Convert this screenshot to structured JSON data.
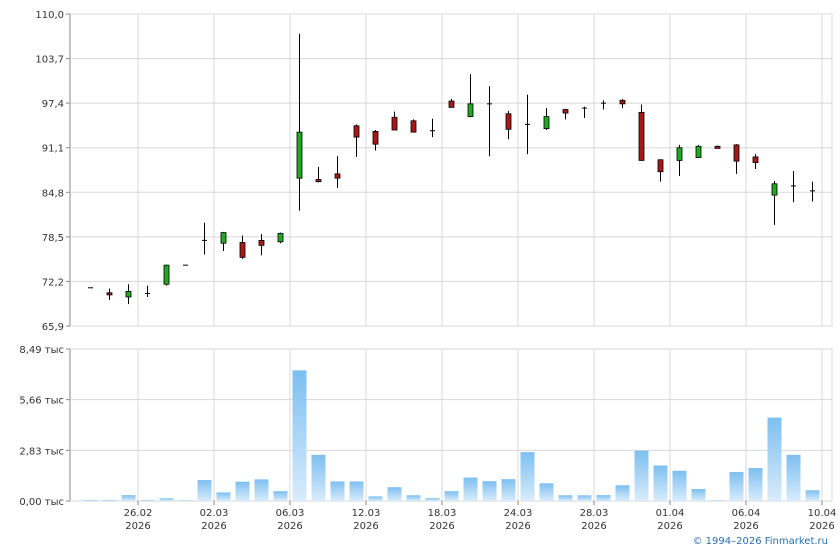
{
  "chart_data": [
    {
      "type": "candlestick",
      "ylim": [
        65.9,
        110.0
      ],
      "yticks": [
        "110,0",
        "103,7",
        "97,4",
        "91,1",
        "84,8",
        "78,5",
        "72,2",
        "65,9"
      ],
      "ytick_values": [
        110.0,
        103.7,
        97.4,
        91.1,
        84.8,
        78.5,
        72.2,
        65.9
      ],
      "grid": true,
      "up_color": "#22a822",
      "down_color": "#a81818",
      "candles": [
        {
          "o": 71.3,
          "h": 71.3,
          "l": 71.3,
          "c": 71.3
        },
        {
          "o": 70.6,
          "h": 71.2,
          "l": 69.6,
          "c": 70.3
        },
        {
          "o": 70.0,
          "h": 71.8,
          "l": 69.0,
          "c": 70.8
        },
        {
          "o": 70.5,
          "h": 71.6,
          "l": 70.0,
          "c": 70.5
        },
        {
          "o": 71.8,
          "h": 74.6,
          "l": 71.6,
          "c": 74.5
        },
        {
          "o": 74.5,
          "h": 74.5,
          "l": 74.5,
          "c": 74.5
        },
        {
          "o": 78.0,
          "h": 80.5,
          "l": 76.0,
          "c": 78.0
        },
        {
          "o": 77.6,
          "h": 79.2,
          "l": 76.5,
          "c": 79.1
        },
        {
          "o": 77.7,
          "h": 78.7,
          "l": 75.4,
          "c": 75.6
        },
        {
          "o": 78.0,
          "h": 78.9,
          "l": 75.9,
          "c": 77.3
        },
        {
          "o": 77.8,
          "h": 79.1,
          "l": 77.6,
          "c": 79.0
        },
        {
          "o": 86.8,
          "h": 107.2,
          "l": 82.2,
          "c": 93.3
        },
        {
          "o": 86.6,
          "h": 88.4,
          "l": 86.2,
          "c": 86.3
        },
        {
          "o": 87.4,
          "h": 89.9,
          "l": 85.4,
          "c": 86.8
        },
        {
          "o": 94.2,
          "h": 94.4,
          "l": 89.8,
          "c": 92.6
        },
        {
          "o": 93.4,
          "h": 93.6,
          "l": 90.7,
          "c": 91.6
        },
        {
          "o": 95.4,
          "h": 96.2,
          "l": 93.6,
          "c": 93.6
        },
        {
          "o": 94.9,
          "h": 95.1,
          "l": 93.3,
          "c": 93.3
        },
        {
          "o": 93.5,
          "h": 95.2,
          "l": 92.6,
          "c": 93.5
        },
        {
          "o": 97.7,
          "h": 98.0,
          "l": 97.0,
          "c": 96.8
        },
        {
          "o": 95.5,
          "h": 101.5,
          "l": 95.4,
          "c": 97.3
        },
        {
          "o": 97.3,
          "h": 99.8,
          "l": 89.9,
          "c": 97.3
        },
        {
          "o": 95.9,
          "h": 96.3,
          "l": 92.3,
          "c": 93.7
        },
        {
          "o": 94.4,
          "h": 98.6,
          "l": 90.2,
          "c": 94.4
        },
        {
          "o": 93.8,
          "h": 96.7,
          "l": 93.6,
          "c": 95.5
        },
        {
          "o": 96.5,
          "h": 96.6,
          "l": 95.1,
          "c": 96.0
        },
        {
          "o": 96.7,
          "h": 96.9,
          "l": 95.3,
          "c": 96.7
        },
        {
          "o": 97.4,
          "h": 97.8,
          "l": 96.5,
          "c": 97.4
        },
        {
          "o": 97.8,
          "h": 98.0,
          "l": 96.7,
          "c": 97.3
        },
        {
          "o": 96.1,
          "h": 97.2,
          "l": 89.3,
          "c": 89.3
        },
        {
          "o": 89.4,
          "h": 89.4,
          "l": 86.3,
          "c": 87.7
        },
        {
          "o": 89.3,
          "h": 91.5,
          "l": 87.1,
          "c": 91.1
        },
        {
          "o": 89.7,
          "h": 91.5,
          "l": 89.7,
          "c": 91.3
        },
        {
          "o": 91.3,
          "h": 91.4,
          "l": 91.0,
          "c": 91.0
        },
        {
          "o": 91.5,
          "h": 91.6,
          "l": 87.4,
          "c": 89.2
        },
        {
          "o": 89.8,
          "h": 90.2,
          "l": 88.1,
          "c": 89.0
        },
        {
          "o": 84.4,
          "h": 86.4,
          "l": 80.2,
          "c": 86.0
        },
        {
          "o": 85.7,
          "h": 87.8,
          "l": 83.4,
          "c": 85.7
        },
        {
          "o": 85.0,
          "h": 86.3,
          "l": 83.5,
          "c": 85.0
        }
      ]
    },
    {
      "type": "bar",
      "ylim": [
        0,
        8.49
      ],
      "yticks": [
        "8,49 тыс",
        "5,66 тыс",
        "2,83 тыс",
        "0,00 тыс"
      ],
      "ytick_values": [
        8.49,
        5.66,
        2.83,
        0.0
      ],
      "values": [
        0.05,
        0.05,
        0.33,
        0.05,
        0.15,
        0.04,
        1.17,
        0.48,
        1.08,
        1.21,
        0.55,
        7.3,
        2.58,
        1.09,
        1.09,
        0.26,
        0.77,
        0.32,
        0.16,
        0.55,
        1.31,
        1.11,
        1.22,
        2.73,
        0.99,
        0.32,
        0.32,
        0.33,
        0.88,
        2.81,
        1.98,
        1.69,
        0.67,
        0.04,
        1.62,
        1.84,
        4.66,
        2.58,
        0.6
      ],
      "bar_color": "#7dbff0",
      "grid": true
    }
  ],
  "x_labels": [
    {
      "day": "26.02",
      "year": "2026",
      "index": 2
    },
    {
      "day": "02.03",
      "year": "2026",
      "index": 6
    },
    {
      "day": "06.03",
      "year": "2026",
      "index": 10
    },
    {
      "day": "12.03",
      "year": "2026",
      "index": 14
    },
    {
      "day": "18.03",
      "year": "2026",
      "index": 18
    },
    {
      "day": "24.03",
      "year": "2026",
      "index": 22
    },
    {
      "day": "28.03",
      "year": "2026",
      "index": 26
    },
    {
      "day": "01.04",
      "year": "2026",
      "index": 30
    },
    {
      "day": "06.04",
      "year": "2026",
      "index": 34
    },
    {
      "day": "10.04",
      "year": "2026",
      "index": 38
    }
  ],
  "copyright": "© 1994–2026 Finmarket.ru",
  "colors": {
    "grid": "#d8d8d8",
    "axis": "#888888"
  }
}
